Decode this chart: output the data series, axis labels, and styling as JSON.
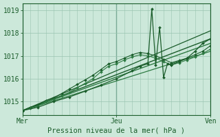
{
  "background_color": "#cce8da",
  "grid_color": "#99c4b0",
  "line_color_dark": "#1a5c2a",
  "line_color_mid": "#2d7a42",
  "title": "Pression niveau de la mer( hPa )",
  "x_ticks": [
    0,
    12,
    24
  ],
  "x_tick_labels": [
    "Mer",
    "Jeu",
    "Ven"
  ],
  "ylim": [
    1014.4,
    1019.3
  ],
  "yticks": [
    1015,
    1016,
    1017,
    1018,
    1019
  ],
  "x_total": 24,
  "series_linear1": {
    "x": [
      0,
      24
    ],
    "y": [
      1014.6,
      1017.75
    ]
  },
  "series_linear2": {
    "x": [
      0,
      24
    ],
    "y": [
      1014.6,
      1017.55
    ]
  },
  "series_linear3": {
    "x": [
      0,
      24
    ],
    "y": [
      1014.6,
      1018.1
    ]
  },
  "series_linear4": {
    "x": [
      0,
      24
    ],
    "y": [
      1014.6,
      1017.2
    ]
  },
  "series_wavy": {
    "x": [
      0,
      1,
      2,
      3,
      4,
      5,
      6,
      7,
      8,
      9,
      10,
      11,
      12,
      13,
      14,
      15,
      16,
      17,
      18,
      19,
      20,
      21,
      22,
      23,
      24
    ],
    "y": [
      1014.6,
      1014.75,
      1014.85,
      1015.05,
      1015.15,
      1015.35,
      1015.55,
      1015.75,
      1015.95,
      1016.15,
      1016.4,
      1016.65,
      1016.75,
      1016.9,
      1017.05,
      1017.15,
      1017.1,
      1017.0,
      1016.85,
      1016.7,
      1016.8,
      1016.9,
      1017.05,
      1017.2,
      1017.45
    ]
  },
  "series_wavy2": {
    "x": [
      0,
      1,
      2,
      3,
      4,
      5,
      6,
      7,
      8,
      9,
      10,
      11,
      12,
      13,
      14,
      15,
      16,
      17,
      18,
      19,
      20,
      21,
      22,
      23,
      24
    ],
    "y": [
      1014.6,
      1014.7,
      1014.8,
      1015.0,
      1015.1,
      1015.25,
      1015.4,
      1015.6,
      1015.8,
      1016.0,
      1016.3,
      1016.55,
      1016.65,
      1016.82,
      1016.95,
      1017.05,
      1017.0,
      1016.9,
      1016.75,
      1016.6,
      1016.7,
      1016.82,
      1016.95,
      1017.1,
      1017.3
    ]
  },
  "series_spiky": {
    "x": [
      0,
      2,
      4,
      6,
      8,
      10,
      12,
      14,
      15,
      16,
      16.5,
      17,
      17.5,
      18,
      18.5,
      19,
      20,
      21,
      22,
      23,
      24
    ],
    "y": [
      1014.6,
      1014.75,
      1015.0,
      1015.2,
      1015.45,
      1015.72,
      1016.0,
      1016.35,
      1016.55,
      1016.65,
      1019.05,
      1016.6,
      1018.25,
      1016.05,
      1016.65,
      1016.6,
      1016.75,
      1016.9,
      1017.2,
      1017.55,
      1017.75
    ]
  }
}
